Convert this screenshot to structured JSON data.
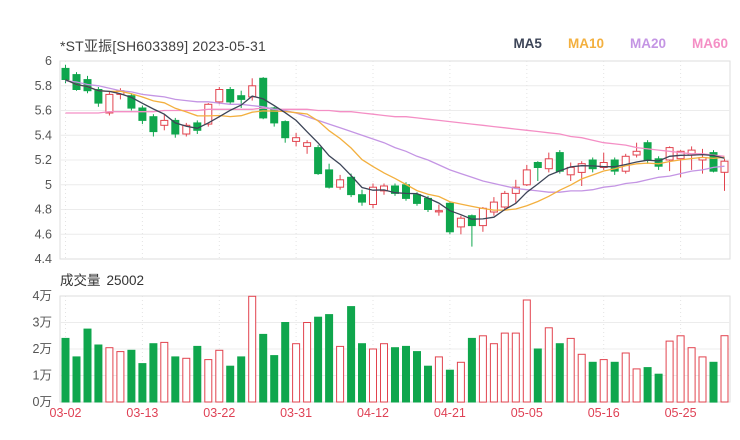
{
  "header": {
    "title": "*ST亚振[SH603389] 2023-05-31",
    "legend": [
      {
        "label": "MA5",
        "color": "#3c4457"
      },
      {
        "label": "MA10",
        "color": "#f3b03f"
      },
      {
        "label": "MA20",
        "color": "#c495e4"
      },
      {
        "label": "MA60",
        "color": "#f48fc5"
      }
    ]
  },
  "volume_header": {
    "label": "成交量",
    "value": "25002"
  },
  "colors": {
    "up": "#e2434e",
    "down": "#0fa64d",
    "grid": "#ececec",
    "border": "#dedede",
    "axis_text": "#555555",
    "date_text": "#df4155"
  },
  "chart_data": {
    "type": "candlestick+volume",
    "title": "*ST亚振[SH603389] 2023-05-31",
    "price_axis_ticks": [
      "6",
      "5.8",
      "5.6",
      "5.4",
      "5.2",
      "5",
      "4.8",
      "4.6",
      "4.4"
    ],
    "price_range": [
      4.4,
      6.0
    ],
    "volume_axis_ticks": [
      "4万",
      "3万",
      "2万",
      "1万",
      "0万"
    ],
    "volume_range": [
      0,
      40000
    ],
    "x_tick_indices": [
      0,
      7,
      14,
      21,
      28,
      35,
      42,
      49,
      56
    ],
    "x_tick_labels": [
      "03-02",
      "03-13",
      "03-22",
      "03-31",
      "04-12",
      "04-21",
      "05-05",
      "05-16",
      "05-25"
    ],
    "dates": [
      "03-02",
      "03-03",
      "03-06",
      "03-07",
      "03-08",
      "03-09",
      "03-10",
      "03-13",
      "03-14",
      "03-15",
      "03-16",
      "03-17",
      "03-20",
      "03-21",
      "03-22",
      "03-23",
      "03-24",
      "03-27",
      "03-28",
      "03-29",
      "03-30",
      "03-31",
      "04-03",
      "04-04",
      "04-06",
      "04-07",
      "04-10",
      "04-11",
      "04-12",
      "04-13",
      "04-14",
      "04-17",
      "04-18",
      "04-19",
      "04-20",
      "04-21",
      "04-24",
      "04-25",
      "04-26",
      "04-27",
      "04-28",
      "05-04",
      "05-05",
      "05-08",
      "05-09",
      "05-10",
      "05-11",
      "05-12",
      "05-15",
      "05-16",
      "05-17",
      "05-18",
      "05-19",
      "05-22",
      "05-23",
      "05-24",
      "05-25",
      "05-26",
      "05-29",
      "05-30",
      "05-31"
    ],
    "open": [
      5.94,
      5.89,
      5.85,
      5.77,
      5.58,
      5.73,
      5.72,
      5.62,
      5.55,
      5.48,
      5.52,
      5.41,
      5.5,
      5.49,
      5.67,
      5.77,
      5.72,
      5.71,
      5.86,
      5.62,
      5.51,
      5.35,
      5.31,
      5.3,
      5.12,
      4.98,
      5.06,
      4.92,
      4.84,
      4.95,
      4.99,
      5.0,
      4.92,
      4.89,
      4.78,
      4.85,
      4.66,
      4.75,
      4.67,
      4.78,
      4.82,
      4.93,
      5.0,
      5.18,
      5.13,
      5.26,
      5.08,
      5.1,
      5.2,
      5.14,
      5.2,
      5.11,
      5.24,
      5.34,
      5.21,
      5.2,
      5.21,
      5.24,
      5.2,
      5.26,
      5.1
    ],
    "high": [
      5.97,
      5.91,
      5.88,
      5.79,
      5.75,
      5.78,
      5.74,
      5.64,
      5.57,
      5.57,
      5.54,
      5.5,
      5.52,
      5.66,
      5.79,
      5.79,
      5.76,
      5.86,
      5.87,
      5.63,
      5.52,
      5.42,
      5.36,
      5.32,
      5.17,
      5.08,
      5.09,
      4.96,
      5.01,
      5.01,
      5.01,
      5.02,
      4.94,
      4.91,
      4.84,
      4.86,
      4.75,
      4.76,
      4.82,
      4.9,
      4.95,
      5.04,
      5.16,
      5.19,
      5.26,
      5.28,
      5.18,
      5.19,
      5.22,
      5.26,
      5.22,
      5.25,
      5.34,
      5.36,
      5.23,
      5.31,
      5.28,
      5.31,
      5.29,
      5.28,
      5.21
    ],
    "low": [
      5.82,
      5.76,
      5.74,
      5.63,
      5.56,
      5.69,
      5.6,
      5.49,
      5.39,
      5.44,
      5.38,
      5.39,
      5.41,
      5.47,
      5.65,
      5.65,
      5.62,
      5.68,
      5.53,
      5.47,
      5.34,
      5.31,
      5.25,
      5.08,
      4.97,
      4.96,
      4.9,
      4.83,
      4.81,
      4.92,
      4.91,
      4.87,
      4.83,
      4.78,
      4.75,
      4.6,
      4.6,
      4.5,
      4.62,
      4.75,
      4.79,
      4.85,
      4.99,
      5.03,
      5.1,
      5.09,
      5.03,
      4.99,
      5.1,
      5.12,
      5.08,
      5.09,
      5.22,
      5.17,
      5.12,
      5.11,
      5.06,
      5.12,
      5.09,
      5.1,
      4.95
    ],
    "close": [
      5.85,
      5.77,
      5.76,
      5.66,
      5.73,
      5.76,
      5.62,
      5.52,
      5.43,
      5.52,
      5.41,
      5.48,
      5.44,
      5.65,
      5.77,
      5.67,
      5.69,
      5.8,
      5.54,
      5.5,
      5.38,
      5.38,
      5.34,
      5.09,
      4.98,
      5.04,
      4.92,
      4.86,
      4.98,
      4.99,
      4.93,
      4.89,
      4.85,
      4.8,
      4.79,
      4.62,
      4.73,
      4.67,
      4.81,
      4.86,
      4.93,
      4.98,
      5.12,
      5.14,
      5.21,
      5.11,
      5.14,
      5.17,
      5.13,
      5.18,
      5.11,
      5.23,
      5.27,
      5.2,
      5.15,
      5.3,
      5.27,
      5.28,
      5.22,
      5.11,
      5.19
    ],
    "volume": [
      24000,
      17000,
      27500,
      21500,
      20500,
      19000,
      19500,
      14500,
      22000,
      22500,
      17000,
      16500,
      21000,
      16000,
      19500,
      13500,
      17000,
      39900,
      25500,
      17500,
      30000,
      22000,
      30000,
      32000,
      33000,
      21000,
      36000,
      22000,
      20000,
      22000,
      20500,
      21000,
      19000,
      13500,
      17000,
      12000,
      15000,
      24000,
      25000,
      22000,
      26000,
      26000,
      38500,
      20000,
      28000,
      22000,
      24000,
      18000,
      15000,
      16000,
      15000,
      18500,
      12500,
      13000,
      10500,
      23000,
      25000,
      20500,
      17000,
      15000,
      25002
    ],
    "ma20": [
      5.84,
      5.83,
      5.81,
      5.8,
      5.78,
      5.76,
      5.75,
      5.73,
      5.72,
      5.71,
      5.69,
      5.68,
      5.67,
      5.67,
      5.66,
      5.65,
      5.65,
      5.64,
      5.63,
      5.61,
      5.6,
      5.58,
      5.55,
      5.52,
      5.49,
      5.46,
      5.43,
      5.4,
      5.37,
      5.34,
      5.3,
      5.27,
      5.23,
      5.2,
      5.16,
      5.12,
      5.09,
      5.06,
      5.03,
      5.01,
      4.99,
      4.97,
      4.96,
      4.95,
      4.94,
      4.94,
      4.95,
      4.95,
      4.96,
      4.98,
      4.99,
      5.01,
      5.02,
      5.04,
      5.06,
      5.07,
      5.09,
      5.11,
      5.12,
      5.14,
      5.15
    ],
    "ma60": [
      5.58,
      5.58,
      5.58,
      5.58,
      5.59,
      5.59,
      5.59,
      5.59,
      5.59,
      5.6,
      5.6,
      5.6,
      5.6,
      5.61,
      5.61,
      5.61,
      5.61,
      5.61,
      5.62,
      5.61,
      5.61,
      5.61,
      5.61,
      5.6,
      5.6,
      5.59,
      5.59,
      5.58,
      5.57,
      5.56,
      5.55,
      5.55,
      5.54,
      5.53,
      5.52,
      5.51,
      5.5,
      5.49,
      5.48,
      5.47,
      5.46,
      5.45,
      5.44,
      5.43,
      5.42,
      5.41,
      5.39,
      5.38,
      5.36,
      5.34,
      5.33,
      5.32,
      5.3,
      5.29,
      5.28,
      5.27,
      5.26,
      5.25,
      5.25,
      5.24,
      5.23
    ],
    "legend_position": "top-right",
    "grid": true
  }
}
